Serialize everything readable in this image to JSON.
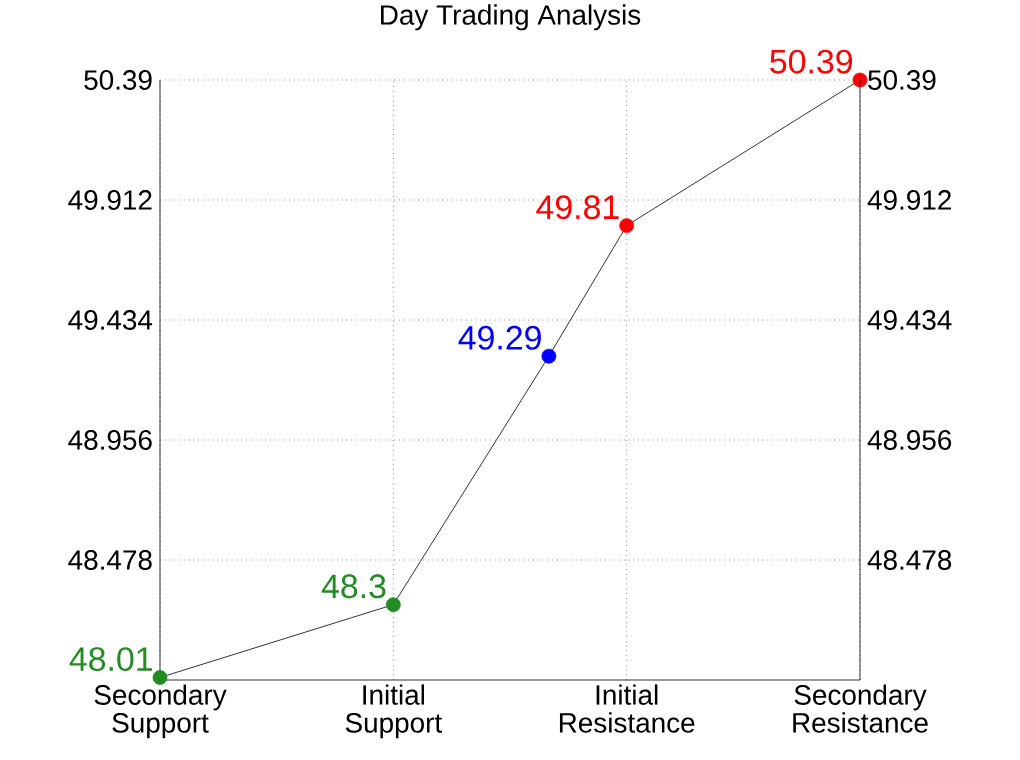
{
  "chart_data": {
    "type": "line",
    "title": "Day Trading Analysis",
    "categories": [
      "Secondary Support",
      null,
      null,
      "Initial Support",
      null,
      null,
      "Initial Resistance",
      null,
      null,
      "Secondary Resistance"
    ],
    "values": [
      48.01,
      null,
      null,
      48.3,
      null,
      49.29,
      49.81,
      null,
      null,
      50.39
    ],
    "color": "#000000",
    "colors": [
      "#228b22",
      null,
      null,
      "#228b22",
      null,
      "#0000ff",
      "#ff0000",
      null,
      null,
      "#ff0000"
    ],
    "ylim": [
      48.0,
      50.39
    ],
    "yticks": [
      48.478,
      48.956,
      49.434,
      49.912,
      50.39
    ],
    "y2lim": [
      48.0,
      50.39
    ],
    "y2ticks": [
      48.478,
      48.956,
      49.434,
      49.912,
      50.39
    ],
    "grid": true,
    "marker": "circle",
    "line_style": "solid",
    "data_labels": true
  }
}
